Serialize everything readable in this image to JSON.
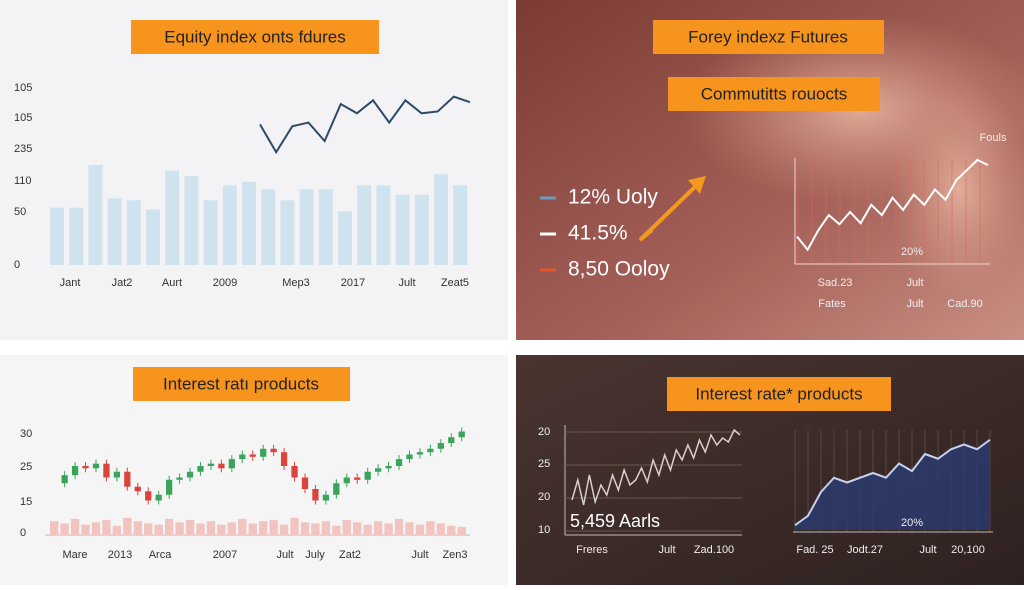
{
  "panels": [
    {
      "title": "Equity index onts fdures",
      "y_labels": [
        "105",
        "105",
        "235",
        "110",
        "50",
        "0"
      ],
      "x_labels": [
        "Jant",
        "Jat2",
        "Aurt",
        "2009",
        "Mep3",
        "2017",
        "Jult",
        "Zeat5"
      ],
      "bars": [
        31,
        31,
        54,
        36,
        35,
        30,
        51,
        48,
        35,
        43,
        45,
        41,
        35,
        41,
        41,
        29,
        43,
        43,
        38,
        38,
        49,
        43
      ],
      "bar_color": "#cfe3ee",
      "line": [
        76,
        61,
        75,
        77,
        67,
        87,
        82,
        89,
        77,
        89,
        82,
        83,
        91,
        88
      ],
      "line_color": "#2e4a6b"
    },
    {
      "titles": [
        "Forey indexz Futures",
        "Commutitts rouocts"
      ],
      "legend": [
        {
          "label": "12% Uoly",
          "color": "#6b9cc0"
        },
        {
          "label": "41.5%",
          "color": "#ffffff"
        },
        {
          "label": "8,50 Ooloy",
          "color": "#e0552a"
        }
      ],
      "chart_label": "Fouls",
      "inner_label": "20%",
      "x_labels_top": [
        "Sad.23",
        "Jult"
      ],
      "x_labels_bottom": [
        "Fates",
        "Jult",
        "Cad.90"
      ],
      "line": [
        25,
        12,
        31,
        46,
        37,
        49,
        38,
        56,
        46,
        63,
        51,
        66,
        56,
        71,
        61,
        80,
        90,
        100,
        95
      ],
      "line_color": "#ffffff"
    },
    {
      "title": "Interest ratı products",
      "y_labels": [
        "30",
        "25",
        "15",
        "0"
      ],
      "x_labels": [
        "Mare",
        "2013",
        "Arca",
        "2007",
        "Jult",
        "July",
        "Zat2",
        "Jult",
        "Zen3"
      ],
      "closes": [
        45,
        52,
        60,
        58,
        62,
        50,
        55,
        42,
        38,
        30,
        35,
        48,
        50,
        55,
        60,
        62,
        58,
        66,
        70,
        68,
        75,
        72,
        60,
        50,
        40,
        30,
        35,
        45,
        50,
        48,
        55,
        58,
        60,
        66,
        70,
        72,
        75,
        80,
        85,
        90
      ],
      "volume": [
        12,
        10,
        14,
        9,
        11,
        13,
        8,
        15,
        12,
        10,
        9,
        14,
        11,
        13,
        10,
        12,
        9,
        11,
        14,
        10,
        12,
        13,
        9,
        15,
        11,
        10,
        12,
        8,
        13,
        11,
        9,
        12,
        10,
        14,
        11,
        9,
        12,
        10,
        8,
        7
      ],
      "up_color": "#3aa55a",
      "down_color": "#d9453c",
      "volume_color": "#f2c4c0"
    },
    {
      "title": "Interest rate* products",
      "y_labels": [
        "20",
        "25",
        "20",
        "10"
      ],
      "annotation": "5,459 Aarls",
      "inner_label": "20%",
      "x_labels_left": [
        "Freres",
        "Jult",
        "Zad.100"
      ],
      "x_labels_right": [
        "Fad. 25",
        "Jodt.27",
        "Jult",
        "20,100"
      ],
      "line": [
        30,
        50,
        25,
        55,
        28,
        45,
        35,
        55,
        40,
        60,
        45,
        50,
        62,
        48,
        70,
        55,
        75,
        60,
        80,
        70,
        85,
        72,
        90,
        78,
        95,
        85,
        92,
        88,
        100,
        95
      ],
      "line_color": "#d8cfcf",
      "area": [
        5,
        15,
        40,
        55,
        50,
        55,
        60,
        55,
        70,
        62,
        80,
        75,
        85,
        90,
        85,
        95
      ],
      "area_color": "#2b3a6e",
      "area_line": "#c8d0f0"
    }
  ]
}
